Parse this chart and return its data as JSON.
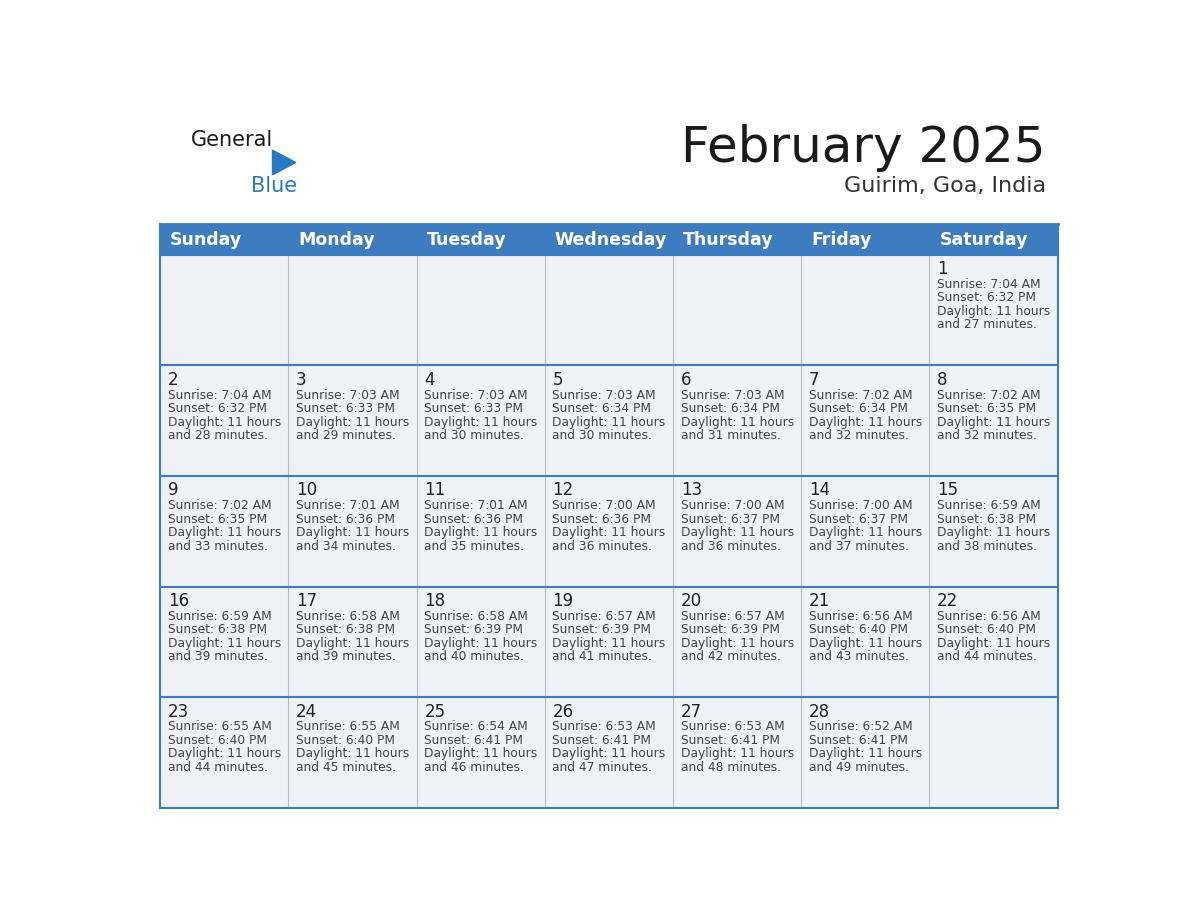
{
  "title": "February 2025",
  "subtitle": "Guirim, Goa, India",
  "days_of_week": [
    "Sunday",
    "Monday",
    "Tuesday",
    "Wednesday",
    "Thursday",
    "Friday",
    "Saturday"
  ],
  "header_bg": "#3d7dbf",
  "header_text": "#ffffff",
  "cell_bg": "#eef2f7",
  "cell_bg_white": "#ffffff",
  "border_color": "#3d7dbf",
  "day_number_color": "#222222",
  "text_color": "#444444",
  "title_color": "#1a1a1a",
  "subtitle_color": "#333333",
  "logo_general_color": "#1a1a1a",
  "logo_blue_color": "#2979c0",
  "calendar_data": [
    [
      null,
      null,
      null,
      null,
      null,
      null,
      {
        "day": 1,
        "sunrise": "7:04 AM",
        "sunset": "6:32 PM",
        "daylight_line1": "Daylight: 11 hours",
        "daylight_line2": "and 27 minutes."
      }
    ],
    [
      {
        "day": 2,
        "sunrise": "7:04 AM",
        "sunset": "6:32 PM",
        "daylight_line1": "Daylight: 11 hours",
        "daylight_line2": "and 28 minutes."
      },
      {
        "day": 3,
        "sunrise": "7:03 AM",
        "sunset": "6:33 PM",
        "daylight_line1": "Daylight: 11 hours",
        "daylight_line2": "and 29 minutes."
      },
      {
        "day": 4,
        "sunrise": "7:03 AM",
        "sunset": "6:33 PM",
        "daylight_line1": "Daylight: 11 hours",
        "daylight_line2": "and 30 minutes."
      },
      {
        "day": 5,
        "sunrise": "7:03 AM",
        "sunset": "6:34 PM",
        "daylight_line1": "Daylight: 11 hours",
        "daylight_line2": "and 30 minutes."
      },
      {
        "day": 6,
        "sunrise": "7:03 AM",
        "sunset": "6:34 PM",
        "daylight_line1": "Daylight: 11 hours",
        "daylight_line2": "and 31 minutes."
      },
      {
        "day": 7,
        "sunrise": "7:02 AM",
        "sunset": "6:34 PM",
        "daylight_line1": "Daylight: 11 hours",
        "daylight_line2": "and 32 minutes."
      },
      {
        "day": 8,
        "sunrise": "7:02 AM",
        "sunset": "6:35 PM",
        "daylight_line1": "Daylight: 11 hours",
        "daylight_line2": "and 32 minutes."
      }
    ],
    [
      {
        "day": 9,
        "sunrise": "7:02 AM",
        "sunset": "6:35 PM",
        "daylight_line1": "Daylight: 11 hours",
        "daylight_line2": "and 33 minutes."
      },
      {
        "day": 10,
        "sunrise": "7:01 AM",
        "sunset": "6:36 PM",
        "daylight_line1": "Daylight: 11 hours",
        "daylight_line2": "and 34 minutes."
      },
      {
        "day": 11,
        "sunrise": "7:01 AM",
        "sunset": "6:36 PM",
        "daylight_line1": "Daylight: 11 hours",
        "daylight_line2": "and 35 minutes."
      },
      {
        "day": 12,
        "sunrise": "7:00 AM",
        "sunset": "6:36 PM",
        "daylight_line1": "Daylight: 11 hours",
        "daylight_line2": "and 36 minutes."
      },
      {
        "day": 13,
        "sunrise": "7:00 AM",
        "sunset": "6:37 PM",
        "daylight_line1": "Daylight: 11 hours",
        "daylight_line2": "and 36 minutes."
      },
      {
        "day": 14,
        "sunrise": "7:00 AM",
        "sunset": "6:37 PM",
        "daylight_line1": "Daylight: 11 hours",
        "daylight_line2": "and 37 minutes."
      },
      {
        "day": 15,
        "sunrise": "6:59 AM",
        "sunset": "6:38 PM",
        "daylight_line1": "Daylight: 11 hours",
        "daylight_line2": "and 38 minutes."
      }
    ],
    [
      {
        "day": 16,
        "sunrise": "6:59 AM",
        "sunset": "6:38 PM",
        "daylight_line1": "Daylight: 11 hours",
        "daylight_line2": "and 39 minutes."
      },
      {
        "day": 17,
        "sunrise": "6:58 AM",
        "sunset": "6:38 PM",
        "daylight_line1": "Daylight: 11 hours",
        "daylight_line2": "and 39 minutes."
      },
      {
        "day": 18,
        "sunrise": "6:58 AM",
        "sunset": "6:39 PM",
        "daylight_line1": "Daylight: 11 hours",
        "daylight_line2": "and 40 minutes."
      },
      {
        "day": 19,
        "sunrise": "6:57 AM",
        "sunset": "6:39 PM",
        "daylight_line1": "Daylight: 11 hours",
        "daylight_line2": "and 41 minutes."
      },
      {
        "day": 20,
        "sunrise": "6:57 AM",
        "sunset": "6:39 PM",
        "daylight_line1": "Daylight: 11 hours",
        "daylight_line2": "and 42 minutes."
      },
      {
        "day": 21,
        "sunrise": "6:56 AM",
        "sunset": "6:40 PM",
        "daylight_line1": "Daylight: 11 hours",
        "daylight_line2": "and 43 minutes."
      },
      {
        "day": 22,
        "sunrise": "6:56 AM",
        "sunset": "6:40 PM",
        "daylight_line1": "Daylight: 11 hours",
        "daylight_line2": "and 44 minutes."
      }
    ],
    [
      {
        "day": 23,
        "sunrise": "6:55 AM",
        "sunset": "6:40 PM",
        "daylight_line1": "Daylight: 11 hours",
        "daylight_line2": "and 44 minutes."
      },
      {
        "day": 24,
        "sunrise": "6:55 AM",
        "sunset": "6:40 PM",
        "daylight_line1": "Daylight: 11 hours",
        "daylight_line2": "and 45 minutes."
      },
      {
        "day": 25,
        "sunrise": "6:54 AM",
        "sunset": "6:41 PM",
        "daylight_line1": "Daylight: 11 hours",
        "daylight_line2": "and 46 minutes."
      },
      {
        "day": 26,
        "sunrise": "6:53 AM",
        "sunset": "6:41 PM",
        "daylight_line1": "Daylight: 11 hours",
        "daylight_line2": "and 47 minutes."
      },
      {
        "day": 27,
        "sunrise": "6:53 AM",
        "sunset": "6:41 PM",
        "daylight_line1": "Daylight: 11 hours",
        "daylight_line2": "and 48 minutes."
      },
      {
        "day": 28,
        "sunrise": "6:52 AM",
        "sunset": "6:41 PM",
        "daylight_line1": "Daylight: 11 hours",
        "daylight_line2": "and 49 minutes."
      },
      null
    ]
  ]
}
